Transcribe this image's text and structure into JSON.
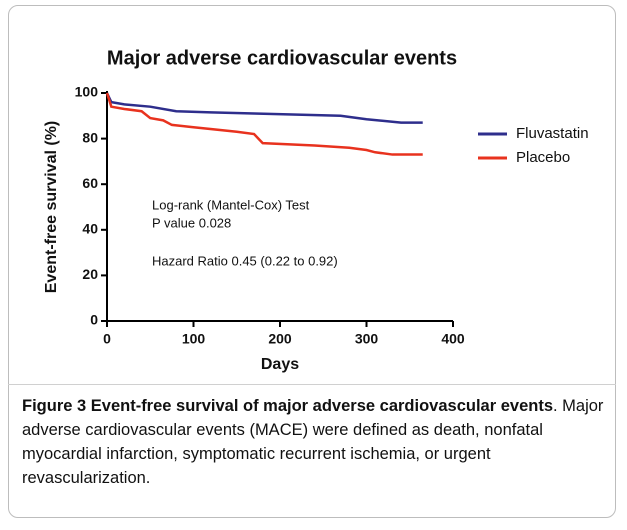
{
  "chart_data": {
    "type": "line",
    "title": "Major adverse cardiovascular events",
    "xlabel": "Days",
    "ylabel": "Event-free survival (%)",
    "xlim": [
      0,
      400
    ],
    "xticks": [
      0,
      100,
      200,
      300,
      400
    ],
    "ylim": [
      0,
      100
    ],
    "yticks": [
      0,
      20,
      40,
      60,
      80,
      100
    ],
    "series": [
      {
        "name": "Fluvastatin",
        "color": "#2e2e8c",
        "x": [
          0,
          5,
          20,
          50,
          80,
          120,
          170,
          270,
          300,
          340,
          365
        ],
        "values": [
          100,
          96,
          95,
          94,
          92,
          91.5,
          91,
          90,
          88.5,
          87,
          87
        ]
      },
      {
        "name": "Placebo",
        "color": "#e8321e",
        "x": [
          0,
          5,
          20,
          40,
          50,
          65,
          75,
          100,
          150,
          170,
          175,
          180,
          240,
          280,
          300,
          310,
          330,
          365
        ],
        "values": [
          100,
          94,
          93,
          92,
          89,
          88,
          86,
          85,
          83,
          82,
          80,
          78,
          77,
          76,
          75,
          74,
          73,
          73
        ]
      }
    ],
    "annotations": [
      "Log-rank (Mantel-Cox) Test",
      "P value 0.028",
      "Hazard Ratio 0.45 (0.22 to 0.92)"
    ]
  },
  "caption": {
    "title": "Figure 3 Event-free survival of major adverse cardiovascular events",
    "text": ". Major adverse cardiovascular events (MACE) were defined as death, nonfatal myocardial infarction, symptomatic recurrent ischemia, or urgent revascularization."
  }
}
